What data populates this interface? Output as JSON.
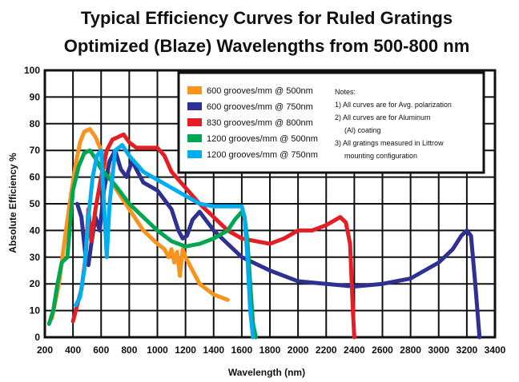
{
  "chart_data": {
    "type": "line",
    "title": [
      "Typical Efficiency Curves  for Ruled Gratings",
      "Optimized (Blaze) Wavelengths from 500-800 nm"
    ],
    "xlabel": "Wavelength (nm)",
    "ylabel": "Absolute Efficiency %",
    "xlim": [
      200,
      3400
    ],
    "ylim": [
      0,
      100
    ],
    "x_ticks": [
      200,
      400,
      600,
      800,
      1000,
      1200,
      1400,
      1600,
      1800,
      2000,
      2200,
      2400,
      2600,
      2800,
      3000,
      3200,
      3400
    ],
    "x_tick_labels": [
      "200",
      "400",
      "600",
      "800",
      "1000",
      "1200",
      "1400",
      "1600",
      "1800",
      "2000",
      "2200",
      "2400",
      "2600",
      "2800",
      "3000",
      "3200",
      "3400"
    ],
    "y_ticks": [
      0,
      10,
      20,
      30,
      40,
      50,
      60,
      70,
      80,
      90,
      100
    ],
    "grid": true,
    "legend_position": "top-right",
    "notes": [
      "Notes:",
      "1) All curves are for Avg. polarization",
      "2) All curves are for Aluminum",
      "(Al) coating",
      "3) All gratings measured in Littrow",
      "mounting configuration"
    ],
    "series": [
      {
        "name": "600 grooves/mm @ 500nm",
        "color": "#f7941d",
        "points": [
          [
            250,
            7
          ],
          [
            300,
            20
          ],
          [
            350,
            40
          ],
          [
            390,
            55
          ],
          [
            420,
            65
          ],
          [
            450,
            73
          ],
          [
            480,
            77
          ],
          [
            520,
            78
          ],
          [
            560,
            75
          ],
          [
            600,
            70
          ],
          [
            650,
            62
          ],
          [
            700,
            56
          ],
          [
            800,
            48
          ],
          [
            900,
            40
          ],
          [
            1000,
            35
          ],
          [
            1050,
            33
          ],
          [
            1080,
            30
          ],
          [
            1100,
            33
          ],
          [
            1120,
            28
          ],
          [
            1140,
            32
          ],
          [
            1160,
            23
          ],
          [
            1180,
            33
          ],
          [
            1200,
            30
          ],
          [
            1250,
            25
          ],
          [
            1300,
            20
          ],
          [
            1400,
            16
          ],
          [
            1500,
            14
          ]
        ]
      },
      {
        "name": "600 grooves/mm @ 750nm",
        "color": "#2e3192",
        "points": [
          [
            430,
            50
          ],
          [
            460,
            45
          ],
          [
            490,
            30
          ],
          [
            510,
            27
          ],
          [
            530,
            35
          ],
          [
            560,
            45
          ],
          [
            590,
            40
          ],
          [
            620,
            55
          ],
          [
            660,
            66
          ],
          [
            700,
            70
          ],
          [
            740,
            63
          ],
          [
            780,
            60
          ],
          [
            820,
            66
          ],
          [
            860,
            62
          ],
          [
            900,
            58
          ],
          [
            1000,
            55
          ],
          [
            1100,
            48
          ],
          [
            1150,
            40
          ],
          [
            1180,
            37
          ],
          [
            1210,
            38
          ],
          [
            1250,
            44
          ],
          [
            1300,
            47
          ],
          [
            1400,
            40
          ],
          [
            1500,
            35
          ],
          [
            1600,
            30
          ],
          [
            1800,
            25
          ],
          [
            2000,
            21
          ],
          [
            2200,
            20
          ],
          [
            2400,
            19
          ],
          [
            2600,
            20
          ],
          [
            2800,
            22
          ],
          [
            3000,
            28
          ],
          [
            3100,
            33
          ],
          [
            3160,
            38
          ],
          [
            3200,
            40
          ],
          [
            3230,
            38
          ],
          [
            3260,
            20
          ],
          [
            3290,
            0
          ]
        ]
      },
      {
        "name": "830 grooves/mm @ 800nm",
        "color": "#e31e24",
        "points": [
          [
            400,
            6
          ],
          [
            420,
            10
          ],
          [
            460,
            18
          ],
          [
            490,
            30
          ],
          [
            510,
            48
          ],
          [
            530,
            36
          ],
          [
            560,
            48
          ],
          [
            600,
            60
          ],
          [
            640,
            70
          ],
          [
            680,
            74
          ],
          [
            720,
            75
          ],
          [
            760,
            76
          ],
          [
            800,
            73
          ],
          [
            850,
            71
          ],
          [
            900,
            71
          ],
          [
            1000,
            71
          ],
          [
            1050,
            68
          ],
          [
            1100,
            62
          ],
          [
            1200,
            56
          ],
          [
            1300,
            50
          ],
          [
            1400,
            45
          ],
          [
            1500,
            40
          ],
          [
            1600,
            37
          ],
          [
            1700,
            36
          ],
          [
            1800,
            35
          ],
          [
            1900,
            37
          ],
          [
            2000,
            40
          ],
          [
            2100,
            40
          ],
          [
            2200,
            42
          ],
          [
            2300,
            45
          ],
          [
            2340,
            43
          ],
          [
            2370,
            35
          ],
          [
            2390,
            10
          ],
          [
            2400,
            0
          ]
        ]
      },
      {
        "name": "1200 grooves/mm @ 500nm",
        "color": "#00a651",
        "points": [
          [
            230,
            5
          ],
          [
            260,
            10
          ],
          [
            290,
            20
          ],
          [
            320,
            28
          ],
          [
            360,
            30
          ],
          [
            400,
            55
          ],
          [
            440,
            64
          ],
          [
            480,
            69
          ],
          [
            520,
            70
          ],
          [
            560,
            67
          ],
          [
            600,
            63
          ],
          [
            650,
            60
          ],
          [
            700,
            57
          ],
          [
            800,
            50
          ],
          [
            900,
            45
          ],
          [
            1000,
            40
          ],
          [
            1100,
            36
          ],
          [
            1200,
            34
          ],
          [
            1300,
            35
          ],
          [
            1400,
            37
          ],
          [
            1500,
            40
          ],
          [
            1550,
            44
          ],
          [
            1600,
            47
          ],
          [
            1620,
            45
          ],
          [
            1640,
            36
          ],
          [
            1660,
            20
          ],
          [
            1680,
            5
          ],
          [
            1700,
            0
          ]
        ]
      },
      {
        "name": "1200 grooves/mm @ 750nm",
        "color": "#00aeef",
        "points": [
          [
            420,
            12
          ],
          [
            450,
            15
          ],
          [
            480,
            25
          ],
          [
            510,
            45
          ],
          [
            540,
            60
          ],
          [
            570,
            68
          ],
          [
            600,
            70
          ],
          [
            620,
            50
          ],
          [
            640,
            30
          ],
          [
            660,
            50
          ],
          [
            700,
            70
          ],
          [
            750,
            72
          ],
          [
            800,
            68
          ],
          [
            900,
            62
          ],
          [
            1000,
            59
          ],
          [
            1100,
            56
          ],
          [
            1200,
            53
          ],
          [
            1300,
            50
          ],
          [
            1400,
            49
          ],
          [
            1500,
            49
          ],
          [
            1550,
            49
          ],
          [
            1600,
            49
          ],
          [
            1620,
            45
          ],
          [
            1640,
            30
          ],
          [
            1660,
            10
          ],
          [
            1680,
            0
          ]
        ]
      }
    ]
  }
}
